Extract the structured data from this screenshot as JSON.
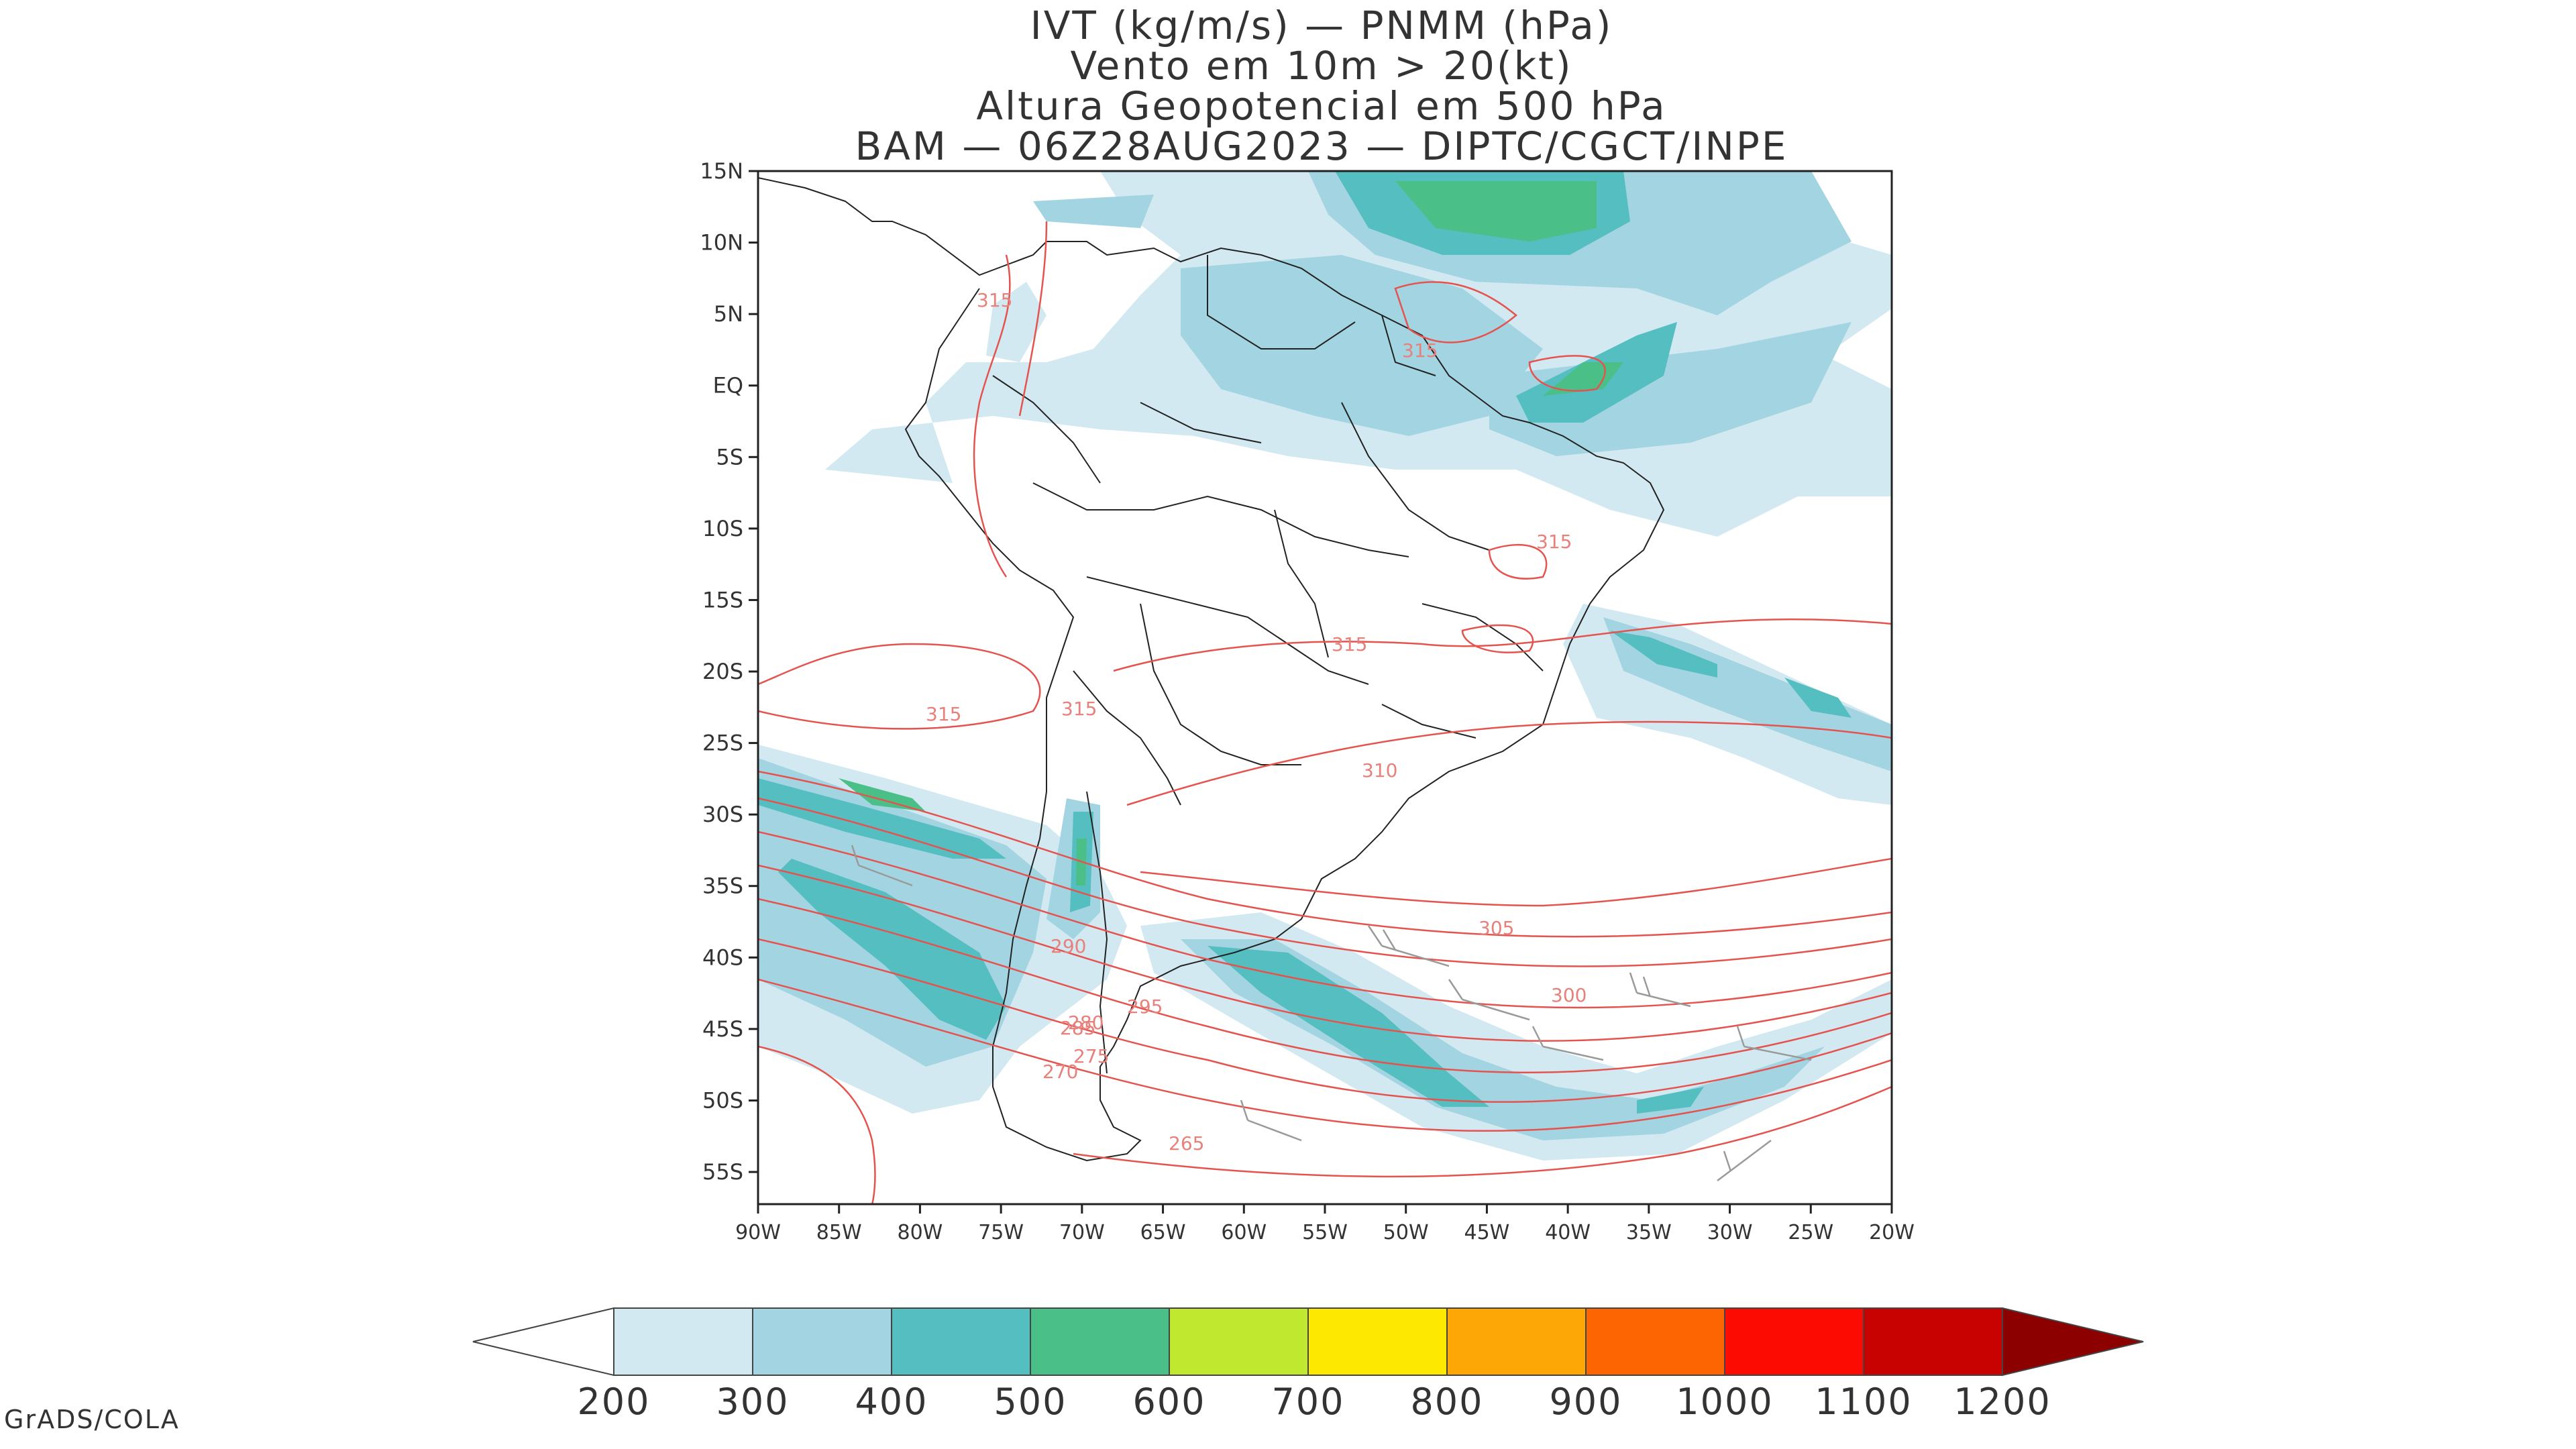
{
  "title": {
    "line1": "IVT (kg/m/s) — PNMM (hPa)",
    "line2": "Vento em 10m > 20(kt)",
    "line3": "Altura Geopotencial em 500 hPa",
    "line4": "BAM — 06Z28AUG2023 — DIPTC/CGCT/INPE"
  },
  "lat_ticks": [
    "15N",
    "10N",
    "5N",
    "EQ",
    "5S",
    "10S",
    "15S",
    "20S",
    "25S",
    "30S",
    "35S",
    "40S",
    "45S",
    "50S",
    "55S"
  ],
  "lon_ticks": [
    "90W",
    "85W",
    "80W",
    "75W",
    "70W",
    "65W",
    "60W",
    "55W",
    "50W",
    "45W",
    "40W",
    "35W",
    "30W",
    "25W",
    "20W"
  ],
  "contour_labels": [
    "315",
    "315",
    "315",
    "315",
    "315",
    "315",
    "310",
    "305",
    "300",
    "295",
    "290",
    "285",
    "280",
    "275",
    "270",
    "265"
  ],
  "colorbar": {
    "labels": [
      "200",
      "300",
      "400",
      "500",
      "600",
      "700",
      "800",
      "900",
      "1000",
      "1100",
      "1200"
    ],
    "colors": [
      "#d2e9f1",
      "#a3d4e2",
      "#55bec1",
      "#4bbf88",
      "#c0e82e",
      "#fde801",
      "#fda707",
      "#fc6502",
      "#fc0b03",
      "#c80101",
      "#8c0000"
    ]
  },
  "footer": "GrADS/COLA"
}
